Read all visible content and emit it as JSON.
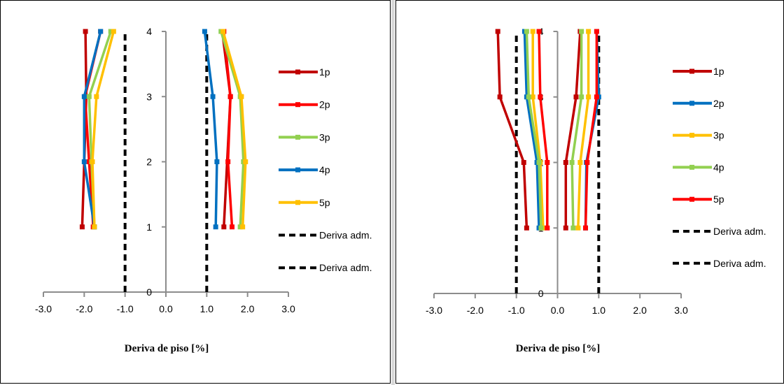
{
  "chart_data": [
    {
      "type": "line",
      "xlabel": "Deriva de piso [%]",
      "ylabel": "",
      "xlim": [
        -3.0,
        3.0
      ],
      "ylim": [
        0,
        4
      ],
      "xticks": [
        "-3.0",
        "-2.0",
        "-1.0",
        "0.0",
        "1.0",
        "2.0",
        "3.0"
      ],
      "yticks": [
        "0",
        "1",
        "2",
        "3",
        "4"
      ],
      "grid": false,
      "legend_position": "right",
      "series": [
        {
          "name": "1p",
          "color": "#C00000",
          "branch": "negative",
          "points": [
            [
              -2.05,
              1
            ],
            [
              -1.95,
              3
            ],
            [
              -1.97,
              4
            ]
          ]
        },
        {
          "name": "1p",
          "color": "#C00000",
          "branch": "positive",
          "points": [
            [
              1.42,
              1
            ],
            [
              1.58,
              3
            ],
            [
              1.38,
              4
            ]
          ]
        },
        {
          "name": "2p",
          "color": "#FF0000",
          "branch": "negative",
          "points": [
            [
              -1.78,
              1
            ],
            [
              -1.88,
              2
            ],
            [
              -1.98,
              3
            ],
            [
              -1.6,
              4
            ]
          ]
        },
        {
          "name": "2p",
          "color": "#FF0000",
          "branch": "positive",
          "points": [
            [
              1.62,
              1
            ],
            [
              1.52,
              2
            ],
            [
              1.58,
              3
            ],
            [
              1.42,
              4
            ]
          ]
        },
        {
          "name": "3p",
          "color": "#92D050",
          "branch": "negative",
          "points": [
            [
              -1.75,
              1
            ],
            [
              -1.82,
              2
            ],
            [
              -1.88,
              3
            ],
            [
              -1.35,
              4
            ]
          ]
        },
        {
          "name": "3p",
          "color": "#92D050",
          "branch": "positive",
          "points": [
            [
              1.82,
              1
            ],
            [
              1.9,
              2
            ],
            [
              1.82,
              3
            ],
            [
              1.35,
              4
            ]
          ]
        },
        {
          "name": "4p",
          "color": "#0070C0",
          "branch": "negative",
          "points": [
            [
              -1.75,
              1
            ],
            [
              -2.0,
              2
            ],
            [
              -2.0,
              3
            ],
            [
              -1.6,
              4
            ]
          ]
        },
        {
          "name": "4p",
          "color": "#0070C0",
          "branch": "positive",
          "points": [
            [
              1.22,
              1
            ],
            [
              1.25,
              2
            ],
            [
              1.15,
              3
            ],
            [
              0.95,
              4
            ]
          ]
        },
        {
          "name": "5p",
          "color": "#FFC000",
          "branch": "negative",
          "points": [
            [
              -1.75,
              1
            ],
            [
              -1.8,
              2
            ],
            [
              -1.7,
              3
            ],
            [
              -1.28,
              4
            ]
          ]
        },
        {
          "name": "5p",
          "color": "#FFC000",
          "branch": "positive",
          "points": [
            [
              1.88,
              1
            ],
            [
              1.95,
              2
            ],
            [
              1.85,
              3
            ],
            [
              1.4,
              4
            ]
          ]
        }
      ],
      "reference_lines": [
        {
          "name": "Deriva adm.",
          "x": -1.0,
          "y_range": [
            0,
            4
          ],
          "color": "#000000"
        },
        {
          "name": "Deriva adm.",
          "x": 1.0,
          "y_range": [
            0,
            4
          ],
          "color": "#000000"
        }
      ],
      "legend": [
        {
          "label": "1p",
          "color": "#C00000",
          "style": "solid"
        },
        {
          "label": "2p",
          "color": "#FF0000",
          "style": "solid"
        },
        {
          "label": "3p",
          "color": "#92D050",
          "style": "solid"
        },
        {
          "label": "4p",
          "color": "#0070C0",
          "style": "solid"
        },
        {
          "label": "5p",
          "color": "#FFC000",
          "style": "solid"
        },
        {
          "label": "Deriva adm.",
          "color": "#000000",
          "style": "dashed"
        },
        {
          "label": "Deriva adm.",
          "color": "#000000",
          "style": "dashed"
        }
      ]
    },
    {
      "type": "line",
      "xlabel": "Deriva de piso [%]",
      "ylabel": "",
      "xlim": [
        -3.0,
        3.0
      ],
      "ylim": [
        0,
        4
      ],
      "xticks": [
        "-3.0",
        "-2.0",
        "-1.0",
        "0.0",
        "1.0",
        "2.0",
        "3.0"
      ],
      "yticks": [
        "0",
        "1",
        "2",
        "3",
        "4"
      ],
      "grid": false,
      "legend_position": "right",
      "series": [
        {
          "name": "1p",
          "color": "#C00000",
          "branch": "negative",
          "points": [
            [
              -0.75,
              1
            ],
            [
              -0.82,
              2
            ],
            [
              -1.4,
              3
            ],
            [
              -1.45,
              4
            ]
          ]
        },
        {
          "name": "1p",
          "color": "#C00000",
          "branch": "positive",
          "points": [
            [
              0.2,
              1
            ],
            [
              0.2,
              2
            ],
            [
              0.45,
              3
            ],
            [
              0.55,
              4
            ]
          ]
        },
        {
          "name": "2p",
          "color": "#0070C0",
          "branch": "negative",
          "points": [
            [
              -0.45,
              1
            ],
            [
              -0.5,
              2
            ],
            [
              -0.75,
              3
            ],
            [
              -0.8,
              4
            ]
          ]
        },
        {
          "name": "2p",
          "color": "#0070C0",
          "branch": "positive",
          "points": [
            [
              0.68,
              1
            ],
            [
              0.7,
              2
            ],
            [
              1.0,
              3
            ],
            [
              0.95,
              4
            ]
          ]
        },
        {
          "name": "3p",
          "color": "#FFC000",
          "branch": "negative",
          "points": [
            [
              -0.35,
              1
            ],
            [
              -0.42,
              2
            ],
            [
              -0.6,
              3
            ],
            [
              -0.6,
              4
            ]
          ]
        },
        {
          "name": "3p",
          "color": "#FFC000",
          "branch": "positive",
          "points": [
            [
              0.5,
              1
            ],
            [
              0.55,
              2
            ],
            [
              0.75,
              3
            ],
            [
              0.75,
              4
            ]
          ]
        },
        {
          "name": "4p",
          "color": "#92D050",
          "branch": "negative",
          "points": [
            [
              -0.4,
              1
            ],
            [
              -0.45,
              2
            ],
            [
              -0.7,
              3
            ],
            [
              -0.75,
              4
            ]
          ]
        },
        {
          "name": "4p",
          "color": "#92D050",
          "branch": "positive",
          "points": [
            [
              0.38,
              1
            ],
            [
              0.35,
              2
            ],
            [
              0.58,
              3
            ],
            [
              0.58,
              4
            ]
          ]
        },
        {
          "name": "5p",
          "color": "#FF0000",
          "branch": "negative",
          "points": [
            [
              -0.25,
              1
            ],
            [
              -0.25,
              2
            ],
            [
              -0.42,
              3
            ],
            [
              -0.45,
              4
            ]
          ]
        },
        {
          "name": "5p",
          "color": "#FF0000",
          "branch": "positive",
          "points": [
            [
              0.68,
              1
            ],
            [
              0.72,
              2
            ],
            [
              0.95,
              3
            ],
            [
              0.95,
              4
            ]
          ]
        }
      ],
      "reference_lines": [
        {
          "name": "Deriva adm.",
          "x": -1.0,
          "y_range": [
            0,
            4
          ],
          "color": "#000000"
        },
        {
          "name": "Deriva adm.",
          "x": 1.0,
          "y_range": [
            0,
            4
          ],
          "color": "#000000"
        }
      ],
      "legend": [
        {
          "label": "1p",
          "color": "#C00000",
          "style": "solid"
        },
        {
          "label": "2p",
          "color": "#0070C0",
          "style": "solid"
        },
        {
          "label": "3p",
          "color": "#FFC000",
          "style": "solid"
        },
        {
          "label": "4p",
          "color": "#92D050",
          "style": "solid"
        },
        {
          "label": "5p",
          "color": "#FF0000",
          "style": "solid"
        },
        {
          "label": "Deriva adm.",
          "color": "#000000",
          "style": "dashed"
        },
        {
          "label": "Deriva adm.",
          "color": "#000000",
          "style": "dashed"
        }
      ]
    }
  ]
}
